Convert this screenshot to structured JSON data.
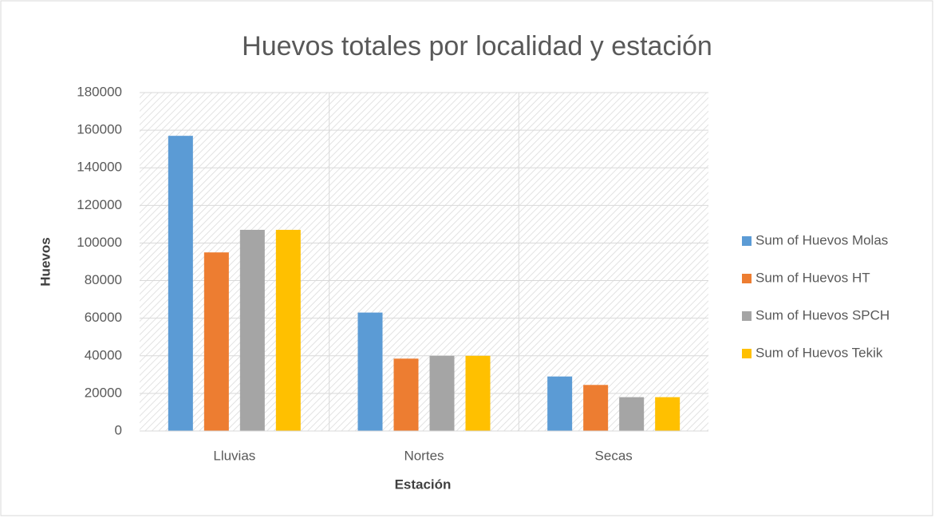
{
  "chart_data": {
    "type": "bar",
    "title": "Huevos totales por localidad y estación",
    "x_label": "Estación",
    "y_label": "Huevos",
    "categories": [
      "Lluvias",
      "Nortes",
      "Secas"
    ],
    "series": [
      {
        "name": "Sum of Huevos Molas",
        "color": "#5b9bd5",
        "values": [
          157000,
          63000,
          29000
        ]
      },
      {
        "name": "Sum of Huevos HT",
        "color": "#ed7d31",
        "values": [
          95000,
          38500,
          24500
        ]
      },
      {
        "name": "Sum of Huevos SPCH",
        "color": "#a5a5a5",
        "values": [
          107000,
          40000,
          18000
        ]
      },
      {
        "name": "Sum of Huevos Tekik",
        "color": "#ffc000",
        "values": [
          107000,
          40000,
          18000
        ]
      }
    ],
    "ylim": [
      0,
      180000
    ],
    "yticks": [
      0,
      20000,
      40000,
      60000,
      80000,
      100000,
      120000,
      140000,
      160000,
      180000
    ],
    "grid": true,
    "legend": "right"
  }
}
